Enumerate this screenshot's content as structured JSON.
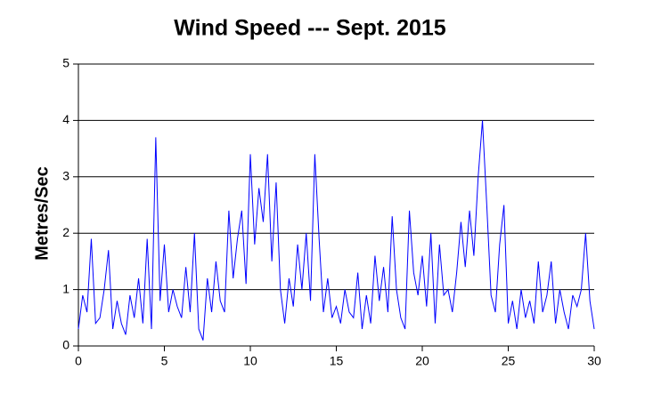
{
  "chart_data": {
    "type": "line",
    "title": "Wind Speed --- Sept. 2015",
    "y_label": "Metres/Sec",
    "x": [
      0,
      0.25,
      0.5,
      0.75,
      1,
      1.25,
      1.5,
      1.75,
      2,
      2.25,
      2.5,
      2.75,
      3,
      3.25,
      3.5,
      3.75,
      4,
      4.25,
      4.5,
      4.75,
      5,
      5.25,
      5.5,
      5.75,
      6,
      6.25,
      6.5,
      6.75,
      7,
      7.25,
      7.5,
      7.75,
      8,
      8.25,
      8.5,
      8.75,
      9,
      9.25,
      9.5,
      9.75,
      10,
      10.25,
      10.5,
      10.75,
      11,
      11.25,
      11.5,
      11.75,
      12,
      12.25,
      12.5,
      12.75,
      13,
      13.25,
      13.5,
      13.75,
      14,
      14.25,
      14.5,
      14.75,
      15,
      15.25,
      15.5,
      15.75,
      16,
      16.25,
      16.5,
      16.75,
      17,
      17.25,
      17.5,
      17.75,
      18,
      18.25,
      18.5,
      18.75,
      19,
      19.25,
      19.5,
      19.75,
      20,
      20.25,
      20.5,
      20.75,
      21,
      21.25,
      21.5,
      21.75,
      22,
      22.25,
      22.5,
      22.75,
      23,
      23.25,
      23.5,
      23.75,
      24,
      24.25,
      24.5,
      24.75,
      25,
      25.25,
      25.5,
      25.75,
      26,
      26.25,
      26.5,
      26.75,
      27,
      27.25,
      27.5,
      27.75,
      28,
      28.25,
      28.5,
      28.75,
      29,
      29.25,
      29.5,
      29.75,
      30
    ],
    "series": [
      {
        "name": "Wind Speed",
        "color": "#0000ff",
        "values": [
          0.3,
          0.9,
          0.6,
          1.9,
          0.4,
          0.5,
          1.0,
          1.7,
          0.3,
          0.8,
          0.4,
          0.2,
          0.9,
          0.5,
          1.2,
          0.4,
          1.9,
          0.3,
          3.7,
          0.8,
          1.8,
          0.6,
          1.0,
          0.7,
          0.5,
          1.4,
          0.6,
          2.0,
          0.3,
          0.1,
          1.2,
          0.6,
          1.5,
          0.8,
          0.6,
          2.4,
          1.2,
          1.9,
          2.4,
          1.1,
          3.4,
          1.8,
          2.8,
          2.2,
          3.4,
          1.5,
          2.9,
          1.0,
          0.4,
          1.2,
          0.7,
          1.8,
          1.0,
          2.0,
          0.8,
          3.4,
          1.9,
          0.6,
          1.2,
          0.5,
          0.7,
          0.4,
          1.0,
          0.6,
          0.5,
          1.3,
          0.3,
          0.9,
          0.4,
          1.6,
          0.8,
          1.4,
          0.6,
          2.3,
          1.0,
          0.5,
          0.3,
          2.4,
          1.3,
          0.9,
          1.6,
          0.7,
          2.0,
          0.4,
          1.8,
          0.9,
          1.0,
          0.6,
          1.3,
          2.2,
          1.4,
          2.4,
          1.6,
          3.0,
          4.0,
          2.5,
          0.9,
          0.6,
          1.8,
          2.5,
          0.4,
          0.8,
          0.3,
          1.0,
          0.5,
          0.8,
          0.4,
          1.5,
          0.6,
          0.9,
          1.5,
          0.4,
          1.0,
          0.6,
          0.3,
          0.9,
          0.7,
          1.0,
          2.0,
          0.8,
          0.3
        ]
      }
    ],
    "xlim": [
      0,
      30
    ],
    "xticks": [
      0,
      5,
      10,
      15,
      20,
      25,
      30
    ],
    "ylim": [
      0,
      5
    ],
    "yticks": [
      0,
      1,
      2,
      3,
      4,
      5
    ],
    "grid": true
  }
}
